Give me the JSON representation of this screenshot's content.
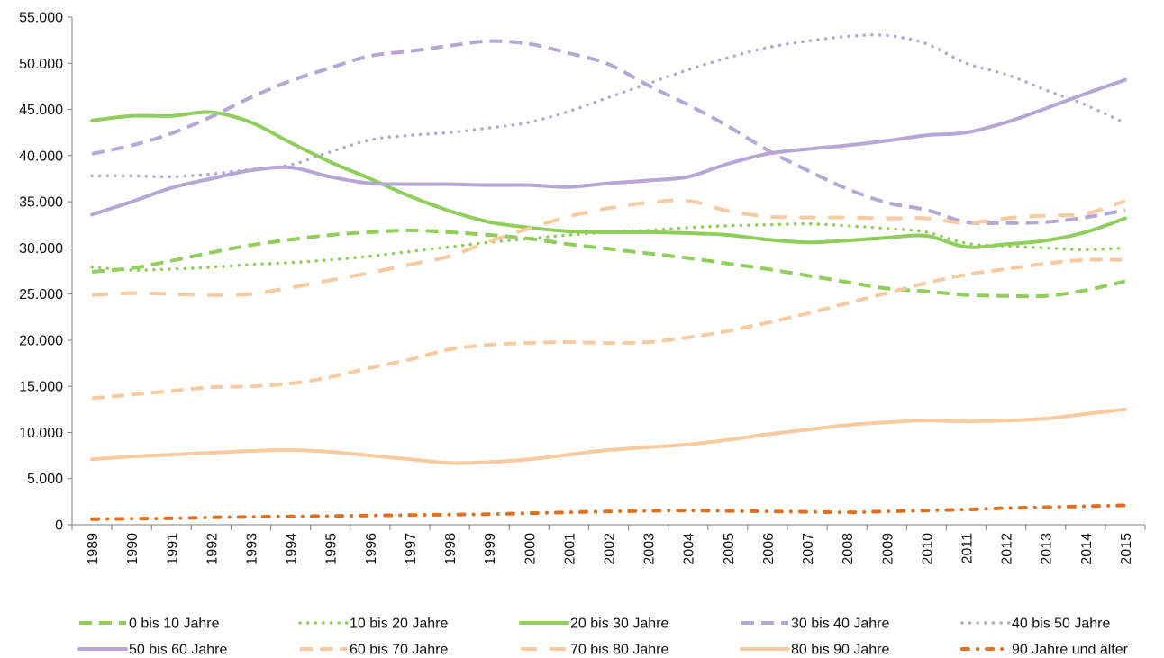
{
  "chart_data": {
    "type": "line",
    "title": "",
    "xlabel": "",
    "ylabel": "",
    "ylim": [
      0,
      55000
    ],
    "y_ticks": [
      "0",
      "5.000",
      "10.000",
      "15.000",
      "20.000",
      "25.000",
      "30.000",
      "35.000",
      "40.000",
      "45.000",
      "50.000",
      "55.000"
    ],
    "grid": false,
    "legend_position": "bottom",
    "x": [
      "1989",
      "1990",
      "1991",
      "1992",
      "1993",
      "1994",
      "1995",
      "1996",
      "1997",
      "1998",
      "1999",
      "2000",
      "2001",
      "2002",
      "2003",
      "2004",
      "2005",
      "2006",
      "2007",
      "2008",
      "2009",
      "2010",
      "2011",
      "2012",
      "2013",
      "2014",
      "2015"
    ],
    "series": [
      {
        "name": "0 bis 10 Jahre",
        "color": "#8fce5b",
        "style": "dashed",
        "values": [
          27400,
          27800,
          28600,
          29500,
          30300,
          30900,
          31400,
          31700,
          31900,
          31700,
          31400,
          31000,
          30400,
          29900,
          29400,
          28900,
          28300,
          27700,
          27000,
          26300,
          25600,
          25300,
          24900,
          24800,
          24800,
          25400,
          26400
        ]
      },
      {
        "name": "10 bis 20 Jahre",
        "color": "#8fce5b",
        "style": "dotted",
        "values": [
          27900,
          27600,
          27700,
          27900,
          28200,
          28400,
          28700,
          29100,
          29600,
          30100,
          30600,
          31000,
          31400,
          31700,
          31900,
          32200,
          32400,
          32500,
          32600,
          32400,
          32100,
          31700,
          30500,
          30200,
          30000,
          29800,
          30000
        ]
      },
      {
        "name": "20 bis 30 Jahre",
        "color": "#8fce5b",
        "style": "solid",
        "values": [
          43800,
          44300,
          44300,
          44700,
          43600,
          41400,
          39300,
          37500,
          35600,
          34000,
          32800,
          32200,
          31800,
          31700,
          31700,
          31600,
          31400,
          30900,
          30600,
          30800,
          31100,
          31300,
          30100,
          30400,
          30800,
          31700,
          33200
        ]
      },
      {
        "name": "30 bis 40 Jahre",
        "color": "#b4a7d6",
        "style": "dashed",
        "values": [
          40200,
          41100,
          42400,
          44200,
          46300,
          48100,
          49500,
          50800,
          51300,
          51900,
          52400,
          52100,
          51100,
          49900,
          47600,
          45500,
          43200,
          40600,
          38400,
          36400,
          34900,
          34100,
          32800,
          32700,
          32800,
          33300,
          34100
        ]
      },
      {
        "name": "40 bis 50 Jahre",
        "color": "#b4a7d6",
        "style": "dotted",
        "values": [
          37800,
          37800,
          37700,
          38000,
          38500,
          39000,
          40400,
          41700,
          42200,
          42500,
          43000,
          43600,
          44800,
          46300,
          47800,
          49300,
          50600,
          51700,
          52400,
          52900,
          53000,
          52100,
          50000,
          48800,
          47100,
          45500,
          43500
        ]
      },
      {
        "name": "50 bis 60 Jahre",
        "color": "#b4a7d6",
        "style": "solid",
        "values": [
          33600,
          35000,
          36500,
          37500,
          38400,
          38700,
          37700,
          37000,
          36900,
          36900,
          36800,
          36800,
          36600,
          37000,
          37300,
          37700,
          39100,
          40200,
          40700,
          41100,
          41600,
          42200,
          42500,
          43600,
          45100,
          46700,
          48200
        ]
      },
      {
        "name": "60 bis 70 Jahre",
        "color": "#f9c99f",
        "style": "dashed",
        "values": [
          13700,
          14100,
          14500,
          14900,
          15000,
          15300,
          16000,
          17000,
          17900,
          19000,
          19500,
          19700,
          19800,
          19700,
          19800,
          20300,
          21000,
          21900,
          22900,
          24000,
          25100,
          26200,
          27100,
          27700,
          28300,
          28700,
          28700
        ]
      },
      {
        "name": "70 bis 80 Jahre",
        "color": "#f9c99f",
        "style": "longdash",
        "values": [
          24900,
          25100,
          25000,
          24900,
          25000,
          25700,
          26500,
          27300,
          28200,
          29100,
          30700,
          32100,
          33400,
          34300,
          34900,
          35100,
          34000,
          33400,
          33300,
          33300,
          33200,
          33200,
          32700,
          33200,
          33500,
          33700,
          35100
        ]
      },
      {
        "name": "80 bis 90 Jahre",
        "color": "#f9c99f",
        "style": "solid",
        "values": [
          7100,
          7400,
          7600,
          7800,
          8000,
          8100,
          7900,
          7500,
          7100,
          6700,
          6800,
          7100,
          7600,
          8100,
          8400,
          8700,
          9200,
          9800,
          10300,
          10800,
          11100,
          11300,
          11200,
          11300,
          11500,
          12000,
          12500
        ]
      },
      {
        "name": "90 Jahre und älter",
        "color": "#e0701d",
        "style": "dashdot",
        "values": [
          600,
          650,
          700,
          800,
          850,
          900,
          950,
          1000,
          1050,
          1100,
          1150,
          1250,
          1350,
          1450,
          1500,
          1550,
          1500,
          1450,
          1400,
          1350,
          1450,
          1550,
          1650,
          1800,
          1900,
          2000,
          2100
        ]
      }
    ]
  }
}
